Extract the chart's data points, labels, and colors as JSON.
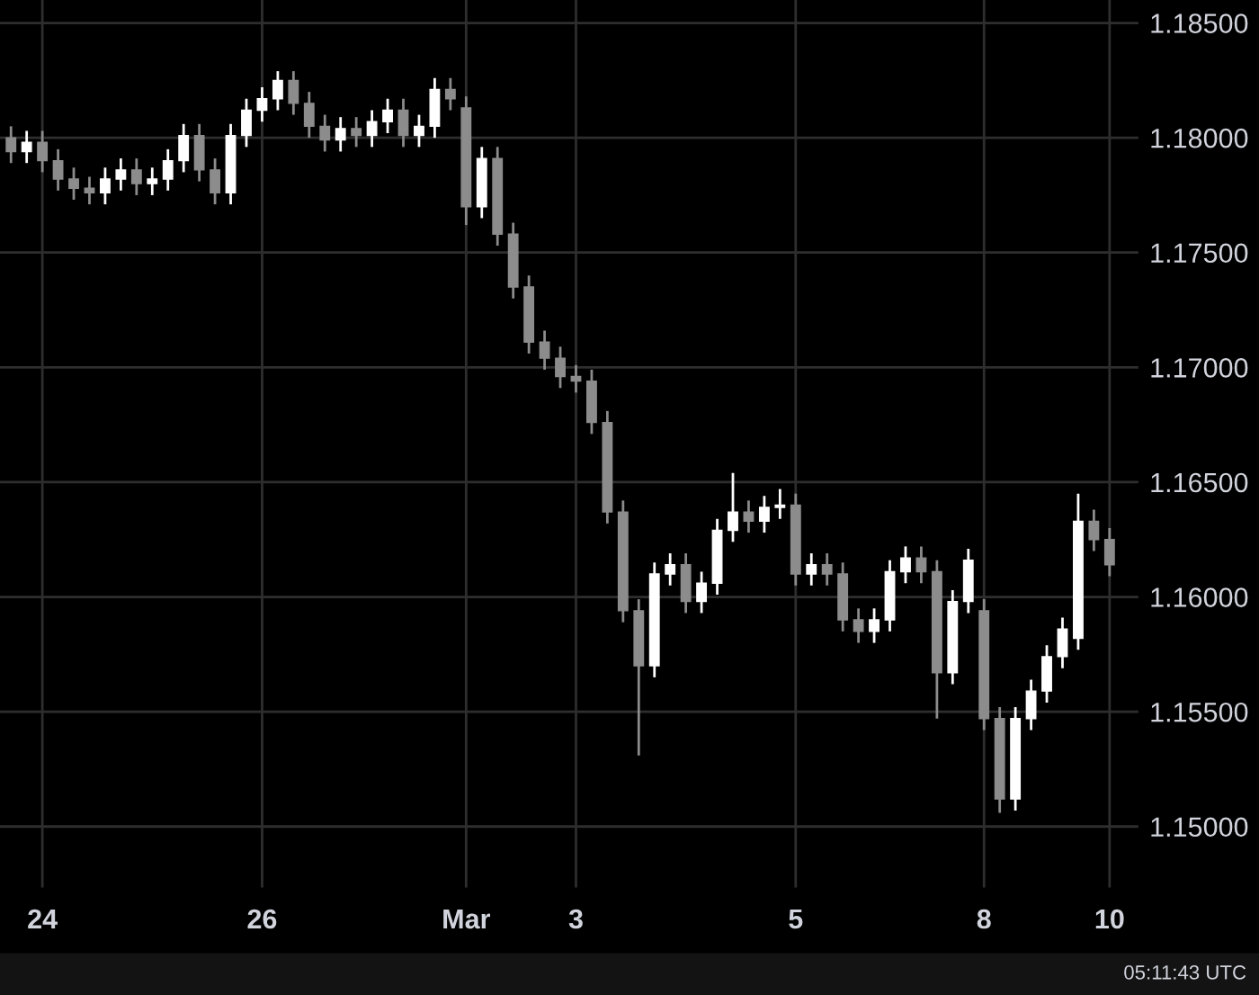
{
  "chart_data": {
    "type": "candlestick",
    "categories": [
      null,
      null,
      "24",
      null,
      null,
      null,
      null,
      null,
      null,
      null,
      null,
      null,
      null,
      null,
      null,
      null,
      "26",
      null,
      null,
      null,
      null,
      null,
      null,
      null,
      null,
      null,
      null,
      null,
      null,
      "Mar",
      null,
      null,
      null,
      null,
      null,
      null,
      "3",
      null,
      null,
      null,
      null,
      null,
      null,
      null,
      null,
      null,
      null,
      null,
      null,
      null,
      "5",
      null,
      null,
      null,
      null,
      null,
      null,
      null,
      null,
      null,
      null,
      null,
      "8",
      null,
      null,
      null,
      null,
      null,
      null,
      null,
      "10"
    ],
    "ohlc": [
      [
        1.18,
        1.1805,
        1.1789,
        1.1794
      ],
      [
        1.1794,
        1.1803,
        1.1789,
        1.1798
      ],
      [
        1.1798,
        1.1803,
        1.1785,
        1.179
      ],
      [
        1.179,
        1.1795,
        1.1777,
        1.1782
      ],
      [
        1.1782,
        1.1787,
        1.1773,
        1.1778
      ],
      [
        1.1778,
        1.1783,
        1.1771,
        1.1776
      ],
      [
        1.1776,
        1.1787,
        1.1771,
        1.1782
      ],
      [
        1.1782,
        1.1791,
        1.1777,
        1.1786
      ],
      [
        1.1786,
        1.1791,
        1.1775,
        1.178
      ],
      [
        1.178,
        1.1787,
        1.1775,
        1.1782
      ],
      [
        1.1782,
        1.1795,
        1.1777,
        1.179
      ],
      [
        1.179,
        1.1806,
        1.1785,
        1.1801
      ],
      [
        1.1801,
        1.1806,
        1.1781,
        1.1786
      ],
      [
        1.1786,
        1.1791,
        1.1771,
        1.1776
      ],
      [
        1.1776,
        1.1806,
        1.1771,
        1.1801
      ],
      [
        1.1801,
        1.1817,
        1.1796,
        1.1812
      ],
      [
        1.1812,
        1.1822,
        1.1807,
        1.1817
      ],
      [
        1.1817,
        1.1829,
        1.1812,
        1.1825
      ],
      [
        1.1825,
        1.1829,
        1.181,
        1.1815
      ],
      [
        1.1815,
        1.182,
        1.18,
        1.1805
      ],
      [
        1.1805,
        1.181,
        1.1794,
        1.1799
      ],
      [
        1.1799,
        1.1809,
        1.1794,
        1.1804
      ],
      [
        1.1804,
        1.1809,
        1.1796,
        1.1801
      ],
      [
        1.1801,
        1.1812,
        1.1796,
        1.1807
      ],
      [
        1.1807,
        1.1817,
        1.1802,
        1.1812
      ],
      [
        1.1812,
        1.1817,
        1.1796,
        1.1801
      ],
      [
        1.1801,
        1.181,
        1.1796,
        1.1805
      ],
      [
        1.1805,
        1.1826,
        1.18,
        1.1821
      ],
      [
        1.1821,
        1.1826,
        1.1812,
        1.1817
      ],
      [
        1.1813,
        1.1818,
        1.1762,
        1.177
      ],
      [
        1.177,
        1.1796,
        1.1765,
        1.1791
      ],
      [
        1.1791,
        1.1796,
        1.1753,
        1.1758
      ],
      [
        1.1758,
        1.1763,
        1.173,
        1.1735
      ],
      [
        1.1735,
        1.174,
        1.1706,
        1.1711
      ],
      [
        1.1711,
        1.1716,
        1.1699,
        1.1704
      ],
      [
        1.1704,
        1.1709,
        1.1691,
        1.1696
      ],
      [
        1.1696,
        1.1701,
        1.1689,
        1.1694
      ],
      [
        1.1694,
        1.1699,
        1.1671,
        1.1676
      ],
      [
        1.1676,
        1.1681,
        1.1632,
        1.1637
      ],
      [
        1.1637,
        1.1642,
        1.1589,
        1.1594
      ],
      [
        1.1594,
        1.1599,
        1.1531,
        1.157
      ],
      [
        1.157,
        1.1615,
        1.1565,
        1.161
      ],
      [
        1.161,
        1.1619,
        1.1605,
        1.1614
      ],
      [
        1.1614,
        1.1619,
        1.1593,
        1.1598
      ],
      [
        1.1598,
        1.1611,
        1.1593,
        1.1606
      ],
      [
        1.1606,
        1.1634,
        1.1601,
        1.1629
      ],
      [
        1.1629,
        1.1654,
        1.1624,
        1.1637
      ],
      [
        1.1637,
        1.1642,
        1.1628,
        1.1633
      ],
      [
        1.1633,
        1.1644,
        1.1628,
        1.1639
      ],
      [
        1.1639,
        1.1647,
        1.1634,
        1.164
      ],
      [
        1.164,
        1.1645,
        1.1605,
        1.161
      ],
      [
        1.161,
        1.1619,
        1.1605,
        1.1614
      ],
      [
        1.1614,
        1.1619,
        1.1605,
        1.161
      ],
      [
        1.161,
        1.1615,
        1.1585,
        1.159
      ],
      [
        1.159,
        1.1595,
        1.158,
        1.1585
      ],
      [
        1.1585,
        1.1595,
        1.158,
        1.159
      ],
      [
        1.159,
        1.1616,
        1.1585,
        1.1611
      ],
      [
        1.1611,
        1.1622,
        1.1606,
        1.1617
      ],
      [
        1.1617,
        1.1622,
        1.1606,
        1.1611
      ],
      [
        1.1611,
        1.1616,
        1.1547,
        1.1567
      ],
      [
        1.1567,
        1.1603,
        1.1562,
        1.1598
      ],
      [
        1.1598,
        1.1621,
        1.1593,
        1.1616
      ],
      [
        1.1594,
        1.1599,
        1.1542,
        1.1547
      ],
      [
        1.1547,
        1.1552,
        1.1506,
        1.1512
      ],
      [
        1.1512,
        1.1552,
        1.1507,
        1.1547
      ],
      [
        1.1547,
        1.1564,
        1.1542,
        1.1559
      ],
      [
        1.1559,
        1.1579,
        1.1554,
        1.1574
      ],
      [
        1.1574,
        1.1591,
        1.1569,
        1.1586
      ],
      [
        1.1582,
        1.1645,
        1.1577,
        1.1633
      ],
      [
        1.1633,
        1.1638,
        1.162,
        1.1625
      ],
      [
        1.1625,
        1.163,
        1.1609,
        1.1614
      ]
    ],
    "colors": [
      "#8c8c8c",
      "#ffffff",
      "#8c8c8c",
      "#8c8c8c",
      "#8c8c8c",
      "#8c8c8c",
      "#ffffff",
      "#ffffff",
      "#8c8c8c",
      "#ffffff",
      "#ffffff",
      "#ffffff",
      "#8c8c8c",
      "#8c8c8c",
      "#ffffff",
      "#ffffff",
      "#ffffff",
      "#ffffff",
      "#8c8c8c",
      "#8c8c8c",
      "#8c8c8c",
      "#ffffff",
      "#8c8c8c",
      "#ffffff",
      "#ffffff",
      "#8c8c8c",
      "#ffffff",
      "#ffffff",
      "#8c8c8c",
      "#8c8c8c",
      "#ffffff",
      "#8c8c8c",
      "#8c8c8c",
      "#8c8c8c",
      "#8c8c8c",
      "#8c8c8c",
      "#8c8c8c",
      "#8c8c8c",
      "#8c8c8c",
      "#8c8c8c",
      "#8c8c8c",
      "#ffffff",
      "#ffffff",
      "#8c8c8c",
      "#ffffff",
      "#ffffff",
      "#ffffff",
      "#8c8c8c",
      "#ffffff",
      "#ffffff",
      "#8c8c8c",
      "#ffffff",
      "#8c8c8c",
      "#8c8c8c",
      "#8c8c8c",
      "#ffffff",
      "#ffffff",
      "#ffffff",
      "#8c8c8c",
      "#8c8c8c",
      "#ffffff",
      "#ffffff",
      "#8c8c8c",
      "#8c8c8c",
      "#ffffff",
      "#ffffff",
      "#ffffff",
      "#ffffff",
      "#ffffff",
      "#8c8c8c",
      "#8c8c8c"
    ],
    "ylim": [
      1.1473,
      1.186
    ],
    "yticks": [
      {
        "value": 1.15,
        "label": "1.15000"
      },
      {
        "value": 1.155,
        "label": "1.15500"
      },
      {
        "value": 1.16,
        "label": "1.16000"
      },
      {
        "value": 1.165,
        "label": "1.16500"
      },
      {
        "value": 1.17,
        "label": "1.17000"
      },
      {
        "value": 1.175,
        "label": "1.17500"
      },
      {
        "value": 1.18,
        "label": "1.18000"
      },
      {
        "value": 1.185,
        "label": "1.18500"
      }
    ],
    "grid": true,
    "annotations": [
      "05:11:43 UTC"
    ]
  }
}
